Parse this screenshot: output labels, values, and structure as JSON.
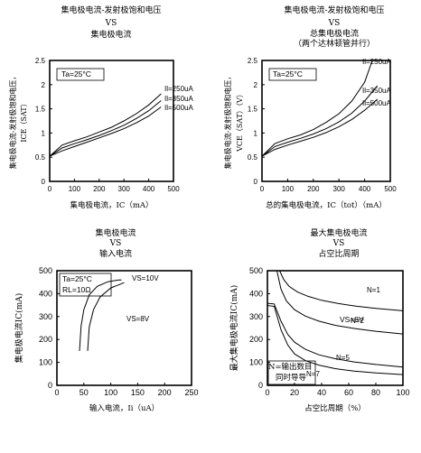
{
  "chart_data": [
    {
      "type": "line",
      "title": [
        "集电极电流-发射极饱和电压",
        "VS",
        "集电极电流"
      ],
      "xlabel": "集电极电流，IC（mA）",
      "ylabel": [
        "集电极电流-发射极饱和电压，",
        "ICE（SAT）"
      ],
      "xticks": [
        "0",
        "100",
        "200",
        "300",
        "400",
        "500"
      ],
      "yticks": [
        "0",
        "0.5",
        "1",
        "1.5",
        "2",
        "2.5"
      ],
      "xlim": [
        0,
        500
      ],
      "ylim": [
        0,
        2.5
      ],
      "annotations": [
        "Ta=25°C"
      ],
      "series": [
        {
          "name": "Il=250uA",
          "x": [
            0,
            50,
            100,
            150,
            200,
            250,
            300,
            350,
            400,
            450
          ],
          "y": [
            0.52,
            0.75,
            0.84,
            0.92,
            1.02,
            1.12,
            1.25,
            1.4,
            1.58,
            1.81
          ]
        },
        {
          "name": "Il=350uA",
          "x": [
            0,
            50,
            100,
            150,
            200,
            250,
            300,
            350,
            400,
            450
          ],
          "y": [
            0.52,
            0.69,
            0.78,
            0.86,
            0.95,
            1.05,
            1.16,
            1.3,
            1.46,
            1.67
          ]
        },
        {
          "name": "Il=500uA",
          "x": [
            0,
            50,
            100,
            150,
            200,
            250,
            300,
            350,
            400,
            450
          ],
          "y": [
            0.52,
            0.63,
            0.72,
            0.81,
            0.9,
            0.99,
            1.09,
            1.21,
            1.35,
            1.54
          ]
        }
      ]
    },
    {
      "type": "line",
      "title": [
        "集电极电流-发射极饱和电压",
        "VS",
        "总集电极电流",
        "（两个达林顿管并行）"
      ],
      "xlabel": "总的集电极电流，IC（tot）（mA）",
      "ylabel": [
        "集电极电流-发射极饱和电压，",
        "VCE（SAT）（V）"
      ],
      "xticks": [
        "0",
        "100",
        "200",
        "300",
        "400",
        "500"
      ],
      "yticks": [
        "0",
        "0.5",
        "1",
        "1.5",
        "2",
        "2.5"
      ],
      "xlim": [
        0,
        500
      ],
      "ylim": [
        0,
        2.5
      ],
      "annotations": [
        "Ta=25°C"
      ],
      "series": [
        {
          "name": "Il=250uA",
          "x": [
            0,
            50,
            100,
            150,
            200,
            250,
            300,
            350,
            400,
            430
          ],
          "y": [
            0.52,
            0.78,
            0.88,
            0.96,
            1.07,
            1.22,
            1.4,
            1.66,
            2.05,
            2.5
          ]
        },
        {
          "name": "Il=350uA",
          "x": [
            0,
            50,
            100,
            150,
            200,
            250,
            300,
            350,
            400,
            450
          ],
          "y": [
            0.52,
            0.72,
            0.81,
            0.89,
            0.98,
            1.09,
            1.23,
            1.41,
            1.66,
            1.98
          ]
        },
        {
          "name": "Il=500uA",
          "x": [
            0,
            50,
            100,
            150,
            200,
            250,
            300,
            350,
            400,
            450
          ],
          "y": [
            0.52,
            0.66,
            0.75,
            0.83,
            0.91,
            1.01,
            1.13,
            1.28,
            1.47,
            1.7
          ]
        }
      ]
    },
    {
      "type": "line",
      "title": [
        "集电极电流",
        "VS",
        "输入电流"
      ],
      "xlabel": "输入电流，Ii（uA）",
      "ylabel": [
        "集电极电流IC(mA)"
      ],
      "xticks": [
        "0",
        "50",
        "100",
        "150",
        "200",
        "250"
      ],
      "yticks": [
        "0",
        "100",
        "200",
        "300",
        "400",
        "500"
      ],
      "xlim": [
        0,
        250
      ],
      "ylim": [
        0,
        500
      ],
      "annotations": [
        "Ta=25°C",
        "RL=10Ω"
      ],
      "series": [
        {
          "name": "VS=10V",
          "x": [
            42,
            45,
            50,
            60,
            75,
            95,
            115,
            120
          ],
          "y": [
            150,
            260,
            330,
            395,
            432,
            452,
            460,
            460
          ]
        },
        {
          "name": "VS=8V",
          "x": [
            57,
            60,
            68,
            80,
            100,
            125
          ],
          "y": [
            150,
            255,
            330,
            385,
            425,
            448
          ]
        }
      ]
    },
    {
      "type": "line",
      "title": [
        "最大集电极电流",
        "VS",
        "占空比周期"
      ],
      "xlabel": "占空比周期（%）",
      "ylabel": [
        "最大集电极电流IC(mA)"
      ],
      "xticks": [
        "0",
        "20",
        "40",
        "60",
        "80",
        "100"
      ],
      "yticks": [
        "0",
        "100",
        "200",
        "300",
        "400",
        "500"
      ],
      "xlim": [
        0,
        100
      ],
      "ylim": [
        0,
        500
      ],
      "annotations": [
        "VS=8V",
        "N=输出数目",
        "同时导导"
      ],
      "series": [
        {
          "name": "N=1",
          "x": [
            9,
            12,
            16,
            22,
            30,
            40,
            52,
            66,
            80,
            100
          ],
          "y": [
            500,
            462,
            432,
            408,
            388,
            371,
            357,
            345,
            336,
            325
          ]
        },
        {
          "name": "N=2",
          "x": [
            7,
            10,
            14,
            20,
            28,
            38,
            50,
            64,
            80,
            100
          ],
          "y": [
            500,
            420,
            368,
            330,
            302,
            280,
            262,
            248,
            236,
            224
          ]
        },
        {
          "name": "N=5",
          "x": [
            0,
            5,
            10,
            15,
            20,
            28,
            38,
            50,
            64,
            80,
            100
          ],
          "y": [
            358,
            355,
            280,
            222,
            188,
            157,
            133,
            116,
            102,
            91,
            80
          ]
        },
        {
          "name": "N=7",
          "x": [
            0,
            5,
            10,
            15,
            20,
            28,
            38,
            50,
            64,
            80,
            100
          ],
          "y": [
            348,
            345,
            243,
            176,
            137,
            108,
            88,
            73,
            62,
            54,
            47
          ]
        }
      ]
    }
  ]
}
